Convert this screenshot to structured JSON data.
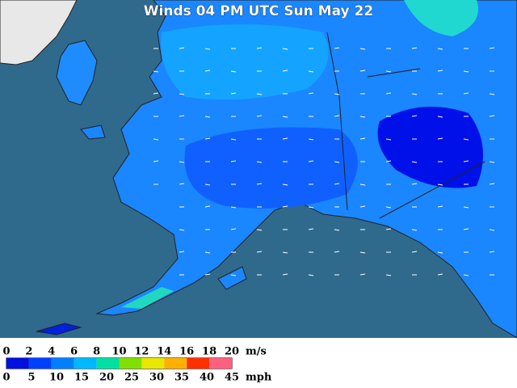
{
  "map": {
    "title": "Winds 04 PM UTC Sun May 22",
    "legend": {
      "colors": [
        "#0010e0",
        "#0040ff",
        "#0080ff",
        "#00b8ff",
        "#00e0a0",
        "#80e000",
        "#e8e800",
        "#ffb000",
        "#ff3000",
        "#ff6080"
      ],
      "ms_ticks": [
        0,
        2,
        4,
        6,
        8,
        10,
        12,
        14,
        16,
        18,
        20
      ],
      "ms_unit": "m/s",
      "mph_ticks": [
        0,
        5,
        10,
        15,
        20,
        25,
        30,
        35,
        40,
        45
      ],
      "mph_unit": "mph"
    }
  }
}
